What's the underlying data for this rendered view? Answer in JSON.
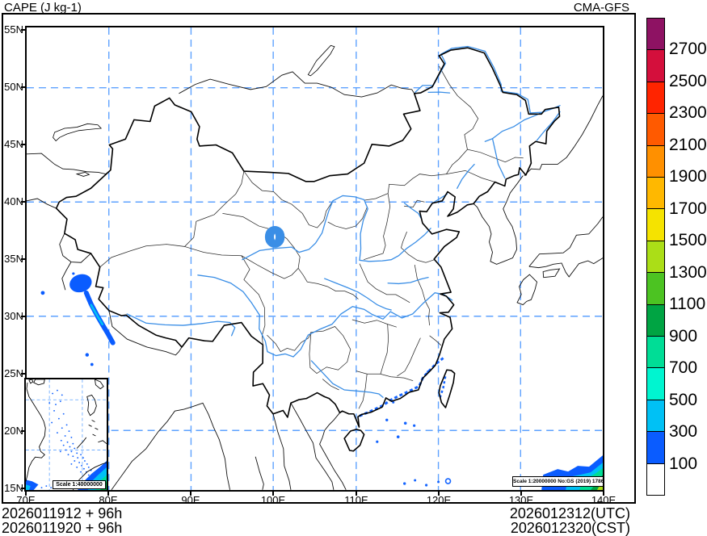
{
  "header": {
    "title": "CAPE (J kg-1)",
    "model_label": "CMA-GFS"
  },
  "axes": {
    "lon_labels": [
      "70E",
      "80E",
      "90E",
      "100E",
      "110E",
      "120E",
      "130E",
      "140E"
    ],
    "lat_labels": [
      "55N",
      "50N",
      "45N",
      "40N",
      "35N",
      "30N",
      "25N",
      "20N",
      "15N"
    ]
  },
  "colorbar": {
    "labels_top_to_bottom": [
      "2700",
      "2500",
      "2300",
      "2100",
      "1900",
      "1700",
      "1500",
      "1300",
      "1100",
      "900",
      "700",
      "500",
      "300",
      "100"
    ],
    "colors_top_to_bottom": [
      "#8e1263",
      "#d40f3c",
      "#ff2400",
      "#ff5a00",
      "#ff9000",
      "#ffb800",
      "#f5e300",
      "#abde17",
      "#4cc322",
      "#00a443",
      "#00dd96",
      "#00f5d0",
      "#00c1f5",
      "#0a5cff",
      "#ffffff"
    ]
  },
  "map": {
    "scale_note": "Scale 1:20000000 No:GS (2019) 1786"
  },
  "inset": {
    "scale_note": "Scale 1:40000000"
  },
  "footer": {
    "left_line1": "2026011912 + 96h",
    "left_line2": "2026011920 + 96h",
    "right_line1": "2026012312(UTC)",
    "right_line2": "2026012320(CST)"
  },
  "style_colors": {
    "grid_dash_blue": "#5ea2ff",
    "river_blue": "#3a8ee6",
    "cape_blue": "#0a5cff",
    "cape_cyan": "#00c1f5",
    "cape_turquoise": "#00f5d0",
    "cape_spring": "#00dd96",
    "cape_green": "#00a443",
    "cape_yellowgreen": "#abde17"
  },
  "chart_data": {
    "type": "heatmap",
    "title": "CAPE (J kg-1)",
    "model": "CMA-GFS",
    "init_time": "2026011912 UTC / 2026011920 CST",
    "lead": "+96h",
    "valid_time": "2026012312 UTC / 2026012320 CST",
    "xlim": [
      70,
      140
    ],
    "ylim": [
      15,
      55
    ],
    "x_ticks": [
      "70E",
      "80E",
      "90E",
      "100E",
      "110E",
      "120E",
      "130E",
      "140E"
    ],
    "y_ticks": [
      "15N",
      "20N",
      "25N",
      "30N",
      "35N",
      "40N",
      "45N",
      "50N",
      "55N"
    ],
    "grid": "dashed blue lines every 10 degrees (80E-130E, 20N-50N)",
    "colorbar_levels": [
      100,
      300,
      500,
      700,
      900,
      1100,
      1300,
      1500,
      1700,
      1900,
      2100,
      2300,
      2500,
      2700
    ],
    "colorbar_colors_low_to_high": [
      "#ffffff",
      "#0a5cff",
      "#00c1f5",
      "#00f5d0",
      "#00dd96",
      "#00a443",
      "#4cc322",
      "#abde17",
      "#f5e300",
      "#ffb800",
      "#ff9000",
      "#ff5a00",
      "#ff2400",
      "#d40f3c",
      "#8e1263"
    ],
    "regions": [
      {
        "area": "Western Himalaya / Kashmir (74-81E, 26-34N)",
        "cape": "blob and SE-trending streak, 100-300 with 300-500 core"
      },
      {
        "area": "South China coast 110-122E around 21-26N incl. west Taiwan",
        "cape": "100-300 speckles hugging coastline"
      },
      {
        "area": "South China Sea scattered dots (112-122E, 15-21N)",
        "cape": "100-300 small patches"
      },
      {
        "area": "Southeast corner (133-140E, 15-18N)",
        "cape": "banded 100-900, up to ~1300 at corner"
      },
      {
        "area": "Inset South China Sea map",
        "cape": "scattered 100-300 dots; 100-900 band near Borneo (bottom-right) and bottom-left strip"
      },
      {
        "area": "Rest of China",
        "cape": "below 100 (white)"
      }
    ]
  }
}
